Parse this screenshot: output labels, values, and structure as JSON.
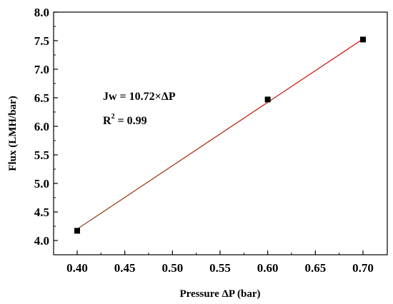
{
  "chart_data": {
    "type": "scatter",
    "title": "",
    "xlabel": "Pressure ΔP (bar)",
    "ylabel": "Flux (LMH/bar)",
    "xlim": [
      0.35,
      0.72
    ],
    "ylim": [
      3.75,
      8.0
    ],
    "grid": false,
    "x_ticks": [
      {
        "value": 0.4,
        "label": "0.40"
      },
      {
        "value": 0.45,
        "label": "0.45"
      },
      {
        "value": 0.5,
        "label": "0.50"
      },
      {
        "value": 0.55,
        "label": "0.55"
      },
      {
        "value": 0.6,
        "label": "0.60"
      },
      {
        "value": 0.65,
        "label": "0.65"
      },
      {
        "value": 0.7,
        "label": "0.70"
      }
    ],
    "y_ticks": [
      {
        "value": 4.0,
        "label": "4.0"
      },
      {
        "value": 4.5,
        "label": "4.5"
      },
      {
        "value": 5.0,
        "label": "5.0"
      },
      {
        "value": 5.5,
        "label": "5.5"
      },
      {
        "value": 6.0,
        "label": "6.0"
      },
      {
        "value": 6.5,
        "label": "6.5"
      },
      {
        "value": 7.0,
        "label": "7.0"
      },
      {
        "value": 7.5,
        "label": "7.5"
      },
      {
        "value": 8.0,
        "label": "8.0"
      }
    ],
    "series": [
      {
        "points": [
          {
            "x": 0.4,
            "y": 4.17
          },
          {
            "x": 0.6,
            "y": 6.47
          },
          {
            "x": 0.7,
            "y": 7.52
          }
        ],
        "marker": "square",
        "color": "#000000"
      }
    ],
    "fit_line": {
      "x": [
        0.4,
        0.7
      ],
      "y": [
        4.2,
        7.53
      ],
      "colors": [
        "#8b4513",
        "#e00000"
      ]
    },
    "annotations": {
      "equation": "Jw = 10.72×ΔP",
      "r2_prefix": "R",
      "r2_exponent": "2",
      "r2_value": " = 0.99"
    }
  }
}
